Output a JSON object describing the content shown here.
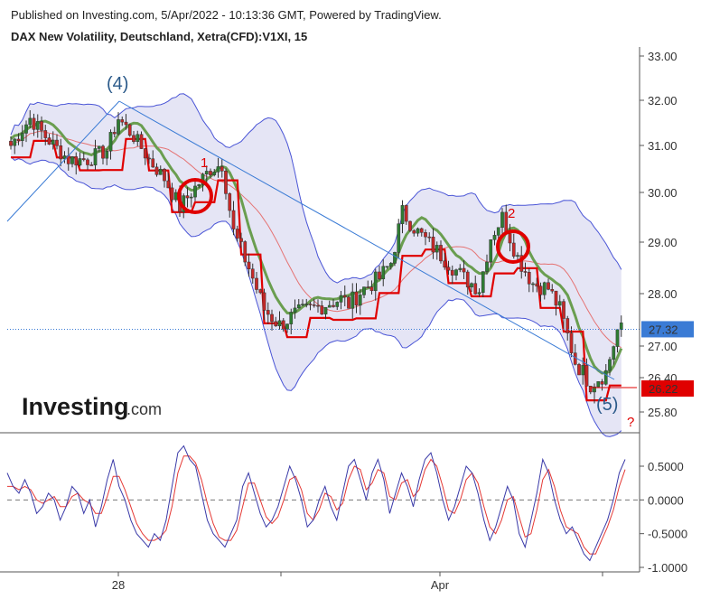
{
  "header": {
    "published": "Published on Investing.com, 5/Apr/2022 - 10:13:36 GMT, Powered by TradingView.",
    "title": "DAX New Volatility, Deutschland, Xetra(CFD):V1XI, 15"
  },
  "logo": {
    "brand": "Investing",
    "suffix": ".com"
  },
  "colors": {
    "candle_up": "#2e7d32",
    "candle_down": "#c62828",
    "bollinger_fill": "#dcdcf2",
    "bollinger_line": "#4a55d6",
    "sma_line": "#e57373",
    "green_ma": "#6a9e50",
    "red_stop": "#e00000",
    "trendline": "#3a7bd5",
    "oscillator_main": "#3a3aa8",
    "oscillator_signal": "#e53935",
    "last_price_badge": "#3a7bd5",
    "marker_badge": "#e00000"
  },
  "chart_data": [
    {
      "type": "candlestick",
      "title": "DAX New Volatility, Deutschland, Xetra(CFD):V1XI, 15",
      "y_ticks": [
        "33.00",
        "32.00",
        "31.00",
        "30.00",
        "29.00",
        "28.00",
        "27.00",
        "26.40",
        "25.80"
      ],
      "x_ticks": [
        "28",
        "Apr"
      ],
      "ylim": [
        25.5,
        33.1
      ],
      "last_price": "27.32",
      "marker_price": "26.22",
      "close_path": [
        [
          0,
          31.0
        ],
        [
          5,
          31.6
        ],
        [
          10,
          31.1
        ],
        [
          15,
          30.7
        ],
        [
          20,
          30.7
        ],
        [
          25,
          30.9
        ],
        [
          28,
          31.6
        ],
        [
          32,
          31.2
        ],
        [
          36,
          30.7
        ],
        [
          40,
          30.3
        ],
        [
          44,
          29.7
        ],
        [
          48,
          30.1
        ],
        [
          52,
          30.5
        ],
        [
          55,
          30.6
        ],
        [
          58,
          29.2
        ],
        [
          62,
          28.5
        ],
        [
          66,
          27.7
        ],
        [
          70,
          27.4
        ],
        [
          74,
          27.6
        ],
        [
          78,
          27.7
        ],
        [
          82,
          27.8
        ],
        [
          86,
          27.9
        ],
        [
          88,
          27.8
        ],
        [
          92,
          28.1
        ],
        [
          96,
          28.3
        ],
        [
          99,
          28.6
        ],
        [
          102,
          29.6
        ],
        [
          106,
          29.2
        ],
        [
          110,
          28.9
        ],
        [
          114,
          28.6
        ],
        [
          118,
          28.3
        ],
        [
          122,
          28.1
        ],
        [
          125,
          29.1
        ],
        [
          128,
          29.5
        ],
        [
          132,
          28.7
        ],
        [
          136,
          28.2
        ],
        [
          140,
          28.1
        ],
        [
          143,
          27.7
        ],
        [
          147,
          26.7
        ],
        [
          151,
          26.3
        ],
        [
          155,
          26.5
        ],
        [
          158,
          27.3
        ]
      ],
      "annotations": [
        {
          "text": "(4)",
          "kind": "wave"
        },
        {
          "text": "1",
          "kind": "marker"
        },
        {
          "text": "2",
          "kind": "marker"
        },
        {
          "text": "(5)",
          "kind": "wave"
        },
        {
          "text": "?",
          "kind": "marker"
        }
      ],
      "overlays": [
        "bollinger bands",
        "moving average",
        "stop line",
        "trendline"
      ]
    },
    {
      "type": "line",
      "y_ticks": [
        "0.5000",
        "0.0000",
        "-0.5000",
        "-1.0000"
      ],
      "ylim": [
        -1.05,
        0.85
      ],
      "zero_line": "dashed",
      "series": [
        {
          "values": [
            0.4,
            0.2,
            0.1,
            0.3,
            0.1,
            -0.2,
            -0.1,
            0.1,
            0.0,
            -0.3,
            -0.1,
            0.2,
            0.1,
            -0.2,
            0.0,
            -0.4,
            -0.1,
            0.3,
            0.6,
            0.2,
            0.0,
            -0.3,
            -0.5,
            -0.6,
            -0.7,
            -0.5,
            -0.6,
            -0.3,
            0.2,
            0.7,
            0.8,
            0.6,
            0.5,
            0.1,
            -0.3,
            -0.5,
            -0.6,
            -0.7,
            -0.5,
            -0.3,
            0.2,
            0.4,
            0.1,
            -0.2,
            -0.4,
            -0.3,
            -0.1,
            0.2,
            0.5,
            0.3,
            0.0,
            -0.4,
            -0.3,
            0.0,
            0.2,
            -0.1,
            -0.3,
            0.1,
            0.5,
            0.6,
            0.3,
            0.0,
            0.4,
            0.6,
            0.3,
            -0.2,
            0.1,
            0.4,
            0.2,
            -0.1,
            0.3,
            0.6,
            0.7,
            0.4,
            0.0,
            -0.3,
            -0.1,
            0.2,
            0.5,
            0.4,
            0.1,
            -0.3,
            -0.6,
            -0.4,
            -0.1,
            0.2,
            0.0,
            -0.5,
            -0.7,
            -0.3,
            0.1,
            0.6,
            0.4,
            0.0,
            -0.3,
            -0.5,
            -0.4,
            -0.6,
            -0.8,
            -0.9,
            -0.7,
            -0.5,
            -0.3,
            0.0,
            0.4,
            0.6
          ]
        },
        {
          "values": [
            0.2,
            0.2,
            0.15,
            0.2,
            0.15,
            0.0,
            -0.05,
            0.0,
            0.05,
            -0.1,
            -0.1,
            0.05,
            0.1,
            0.0,
            -0.05,
            -0.2,
            -0.2,
            0.05,
            0.35,
            0.35,
            0.15,
            -0.1,
            -0.35,
            -0.5,
            -0.6,
            -0.6,
            -0.55,
            -0.45,
            -0.1,
            0.4,
            0.65,
            0.65,
            0.55,
            0.3,
            -0.05,
            -0.35,
            -0.55,
            -0.6,
            -0.6,
            -0.45,
            -0.1,
            0.25,
            0.25,
            0.0,
            -0.25,
            -0.35,
            -0.25,
            0.0,
            0.3,
            0.35,
            0.15,
            -0.2,
            -0.3,
            -0.15,
            0.1,
            0.05,
            -0.15,
            -0.05,
            0.3,
            0.5,
            0.45,
            0.15,
            0.25,
            0.45,
            0.4,
            0.05,
            0.0,
            0.25,
            0.3,
            0.05,
            0.15,
            0.45,
            0.6,
            0.5,
            0.2,
            -0.15,
            -0.2,
            0.0,
            0.3,
            0.4,
            0.25,
            -0.1,
            -0.4,
            -0.5,
            -0.3,
            0.0,
            0.05,
            -0.25,
            -0.55,
            -0.5,
            -0.15,
            0.3,
            0.45,
            0.2,
            -0.15,
            -0.4,
            -0.45,
            -0.5,
            -0.7,
            -0.8,
            -0.8,
            -0.6,
            -0.4,
            -0.15,
            0.2,
            0.45
          ]
        }
      ]
    }
  ]
}
